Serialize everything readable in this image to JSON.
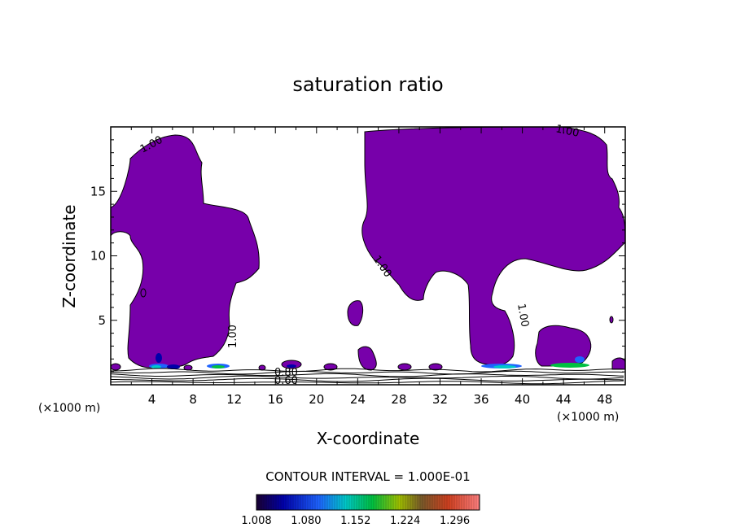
{
  "chart_data": {
    "type": "heatmap",
    "title": "saturation ratio",
    "xlabel": "X-coordinate",
    "ylabel": "Z-coordinate",
    "x_unit": "(×1000 m)",
    "xlim": [
      0,
      50
    ],
    "ylim": [
      0,
      20
    ],
    "x_ticks": [
      4,
      8,
      12,
      16,
      20,
      24,
      28,
      32,
      36,
      40,
      44,
      48
    ],
    "y_ticks": [
      5,
      10,
      15
    ],
    "contour_interval_text": "CONTOUR INTERVAL = 1.000E-01",
    "contour_labels": [
      "1.00",
      "1.00",
      "1.00",
      "1.00",
      "1.00",
      "0.80",
      "0.60"
    ],
    "colorbar": {
      "min": 1.008,
      "max": 1.332,
      "tick_labels": [
        "1.008",
        "1.080",
        "1.152",
        "1.224",
        "1.296"
      ]
    },
    "fill_color": "#7700aa",
    "grid": false
  }
}
